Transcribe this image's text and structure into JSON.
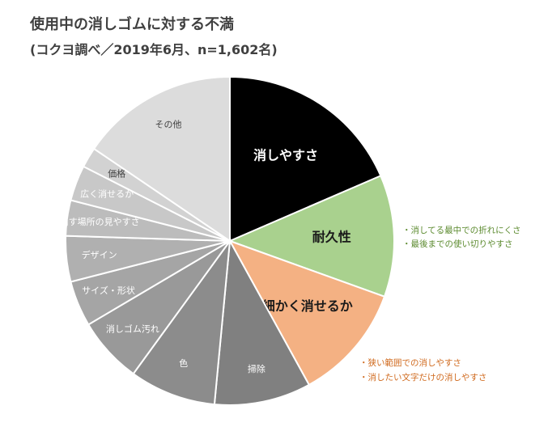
{
  "title": "使用中の消しゴムに対する不満",
  "subtitle": "(コクヨ調べ／2019年6月、n=1,602名)",
  "chart_data": {
    "type": "pie",
    "title": "使用中の消しゴムに対する不満",
    "subtitle": "(コクヨ調べ／2019年6月、n=1,602名)",
    "categories": [
      "消しやすさ",
      "耐久性",
      "細かく消せるか",
      "掃除",
      "色",
      "消しゴム汚れ",
      "サイズ・形状",
      "デザイン",
      "消す場所の見やすさ",
      "広く消せるか",
      "価格",
      "その他"
    ],
    "values": [
      18.5,
      12.0,
      11.5,
      9.5,
      8.5,
      6.5,
      4.5,
      4.5,
      3.5,
      3.5,
      2.0,
      15.5
    ],
    "colors": [
      "#000000",
      "#a9d18e",
      "#f4b183",
      "#808080",
      "#8c8c8c",
      "#999999",
      "#a5a5a5",
      "#b0b0b0",
      "#bcbcbc",
      "#c8c8c8",
      "#d2d2d2",
      "#dcdcdc"
    ],
    "label_colors": [
      "#ffffff",
      "#1a1a1a",
      "#1a1a1a",
      "#ffffff",
      "#ffffff",
      "#ffffff",
      "#ffffff",
      "#ffffff",
      "#ffffff",
      "#ffffff",
      "#404040",
      "#404040"
    ],
    "emphasized": [
      "消しやすさ",
      "耐久性",
      "細かく消せるか"
    ],
    "start_angle_deg": 0,
    "direction": "clockwise",
    "legend": "none",
    "annotations": {
      "耐久性": [
        "・消してる最中での折れにくさ",
        "・最後までの使い切りやすさ"
      ],
      "細かく消せるか": [
        "・狭い範囲での消しやすさ",
        "・消したい文字だけの消しやすさ"
      ]
    }
  }
}
